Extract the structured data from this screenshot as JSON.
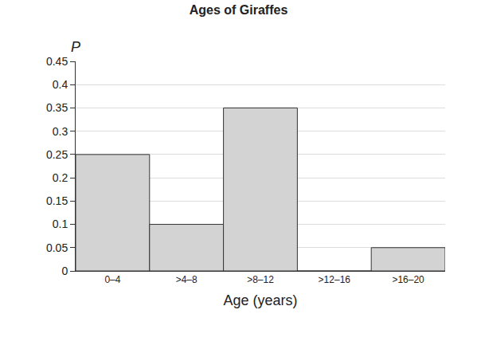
{
  "chart_data": {
    "type": "bar",
    "title": "Ages of Giraffes",
    "xlabel": "Age (years)",
    "ylabel": "P",
    "categories": [
      "0–4",
      ">4–8",
      ">8–12",
      ">12–16",
      ">16–20"
    ],
    "values": [
      0.25,
      0.1,
      0.35,
      0,
      0.05
    ],
    "color": "#d3d3d3",
    "ylim": [
      0,
      0.45
    ],
    "yticks": [
      0,
      0.05,
      0.1,
      0.15,
      0.2,
      0.25,
      0.3,
      0.35,
      0.4,
      0.45
    ],
    "grid": true
  }
}
